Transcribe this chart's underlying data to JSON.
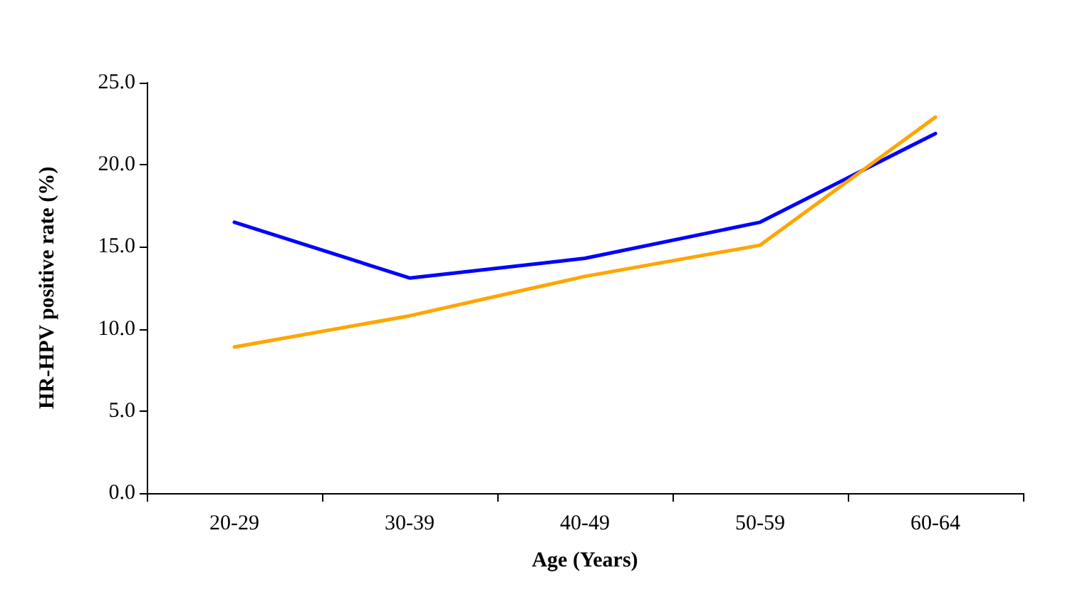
{
  "chart_data": {
    "type": "line",
    "xlabel": "Age (Years)",
    "ylabel": "HR-HPV positive rate (%)",
    "categories": [
      "20-29",
      "30-39",
      "40-49",
      "50-59",
      "60-64"
    ],
    "series": [
      {
        "color": "#0000ff",
        "values": [
          16.5,
          13.1,
          14.3,
          16.5,
          21.9
        ]
      },
      {
        "color": "#ffa500",
        "values": [
          8.9,
          10.8,
          13.2,
          15.1,
          22.9
        ]
      }
    ],
    "ylim": [
      0,
      25
    ],
    "yticks": [
      {
        "value": 0,
        "label": "0.0"
      },
      {
        "value": 5,
        "label": "5.0"
      },
      {
        "value": 10,
        "label": "10.0"
      },
      {
        "value": 15,
        "label": "15.0"
      },
      {
        "value": 20,
        "label": "20.0"
      },
      {
        "value": 25,
        "label": "25.0"
      }
    ],
    "grid": false,
    "marker": "none",
    "line_style": "solid"
  }
}
